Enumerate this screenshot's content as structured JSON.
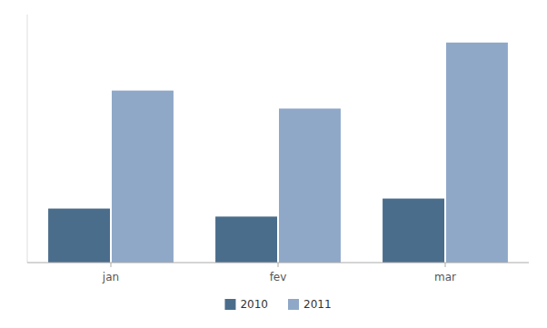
{
  "chart_data": {
    "type": "bar",
    "categories": [
      "jan",
      "fev",
      "mar"
    ],
    "series": [
      {
        "name": "2010",
        "color": "#4a6d8c",
        "values": [
          1.35,
          1.15,
          1.6
        ]
      },
      {
        "name": "2011",
        "color": "#8fa8c8",
        "values": [
          4.3,
          3.85,
          5.5
        ]
      }
    ],
    "ylim": [
      0,
      6.2
    ],
    "yticks": [],
    "tick_labels": "x",
    "legend": "bottom",
    "grid": false
  }
}
